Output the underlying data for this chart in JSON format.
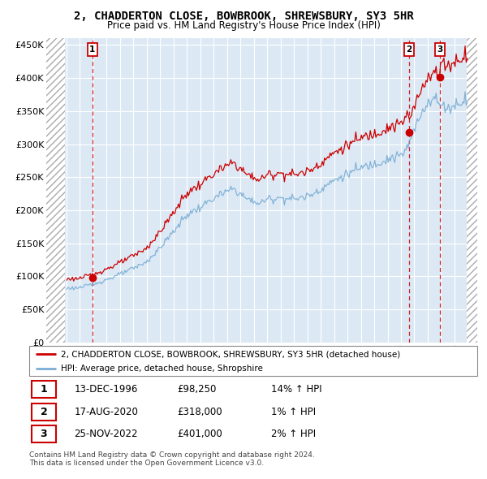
{
  "title": "2, CHADDERTON CLOSE, BOWBROOK, SHREWSBURY, SY3 5HR",
  "subtitle": "Price paid vs. HM Land Registry's House Price Index (HPI)",
  "ylim": [
    0,
    460000
  ],
  "yticks": [
    0,
    50000,
    100000,
    150000,
    200000,
    250000,
    300000,
    350000,
    400000,
    450000
  ],
  "ytick_labels": [
    "£0",
    "£50K",
    "£100K",
    "£150K",
    "£200K",
    "£250K",
    "£300K",
    "£350K",
    "£400K",
    "£450K"
  ],
  "xlim_start": 1993.5,
  "xlim_end": 2025.7,
  "background_color": "#ffffff",
  "plot_bg_color": "#dce9f5",
  "grid_color": "#ffffff",
  "legend_label_red": "2, CHADDERTON CLOSE, BOWBROOK, SHREWSBURY, SY3 5HR (detached house)",
  "legend_label_blue": "HPI: Average price, detached house, Shropshire",
  "red_color": "#cc0000",
  "blue_color": "#7aadd4",
  "purchases": [
    {
      "id": 1,
      "date_num": 1996.95,
      "price": 98250,
      "label": "1"
    },
    {
      "id": 2,
      "date_num": 2020.62,
      "price": 318000,
      "label": "2"
    },
    {
      "id": 3,
      "date_num": 2022.9,
      "price": 401000,
      "label": "3"
    }
  ],
  "table_entries": [
    {
      "num": "1",
      "date": "13-DEC-1996",
      "price": "£98,250",
      "change": "14% ↑ HPI"
    },
    {
      "num": "2",
      "date": "17-AUG-2020",
      "price": "£318,000",
      "change": "1% ↑ HPI"
    },
    {
      "num": "3",
      "date": "25-NOV-2022",
      "price": "£401,000",
      "change": "2% ↑ HPI"
    }
  ],
  "footer1": "Contains HM Land Registry data © Crown copyright and database right 2024.",
  "footer2": "This data is licensed under the Open Government Licence v3.0."
}
